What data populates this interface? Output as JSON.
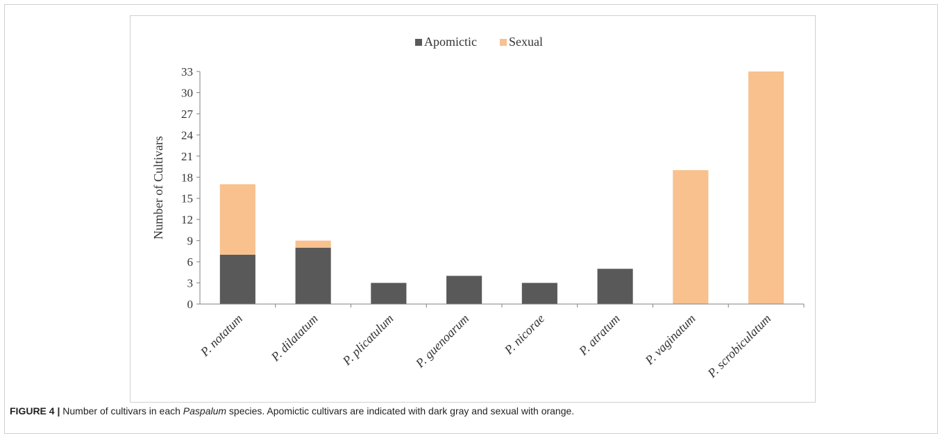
{
  "chart_data": {
    "type": "bar",
    "stacked": true,
    "categories": [
      "P. notatum",
      "P. dilatatum",
      "P. plicatulum",
      "P. guenoarum",
      "P. nicorae",
      "P. atratum",
      "P. vaginatum",
      "P. scrobiculatum"
    ],
    "series": [
      {
        "name": "Apomictic",
        "color": "#595959",
        "values": [
          7,
          8,
          3,
          4,
          3,
          5,
          0,
          0
        ]
      },
      {
        "name": "Sexual",
        "color": "#f8c18e",
        "values": [
          10,
          1,
          0,
          0,
          0,
          0,
          19,
          33
        ]
      }
    ],
    "ylabel": "Number of Cultivars",
    "xlabel": "",
    "ylim": [
      0,
      33
    ],
    "yticks": [
      0,
      3,
      6,
      9,
      12,
      15,
      18,
      21,
      24,
      27,
      30,
      33
    ],
    "legend_position": "top-center",
    "grid": false
  },
  "caption": {
    "label": "FIGURE 4 |",
    "text_before": " Number of cultivars in each ",
    "italic_term": "Paspalum",
    "text_after": " species. Apomictic cultivars are indicated with dark gray and sexual with orange."
  }
}
